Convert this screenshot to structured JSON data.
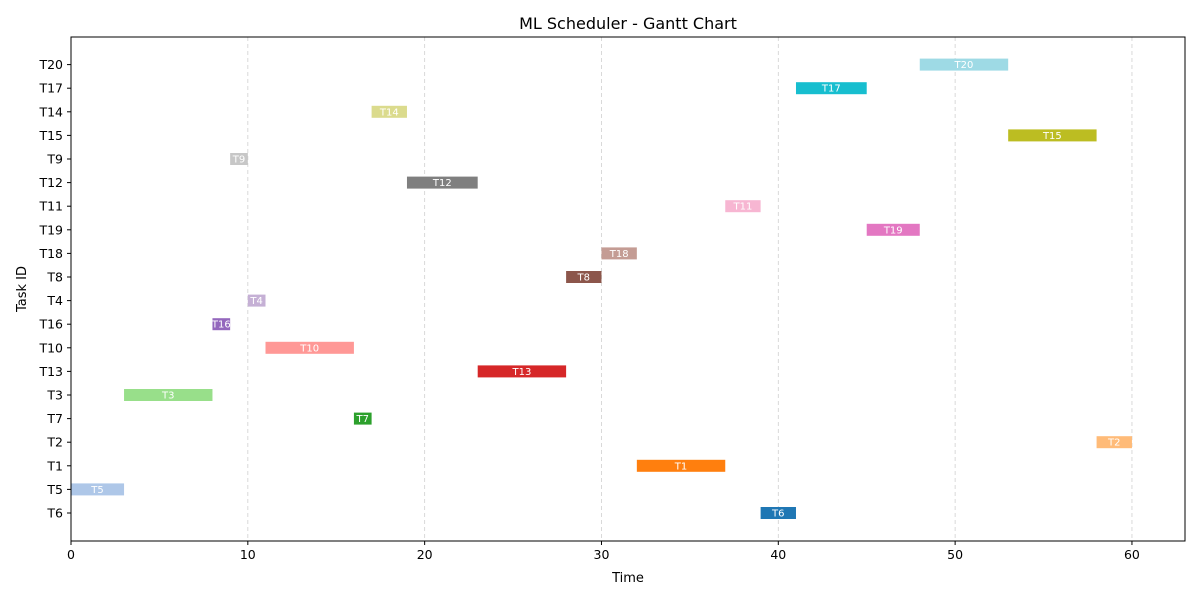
{
  "chart_data": {
    "type": "gantt",
    "title": "ML Scheduler - Gantt Chart",
    "xlabel": "Time",
    "ylabel": "Task ID",
    "xlim": [
      0,
      63
    ],
    "xticks": [
      0,
      10,
      20,
      30,
      40,
      50,
      60
    ],
    "grid": "x-dashed",
    "tasks": [
      {
        "id": "T6",
        "start": 39,
        "end": 41,
        "color": "#1f77b4"
      },
      {
        "id": "T5",
        "start": 0,
        "end": 3,
        "color": "#aec7e8"
      },
      {
        "id": "T1",
        "start": 32,
        "end": 37,
        "color": "#ff7f0e"
      },
      {
        "id": "T2",
        "start": 58,
        "end": 60,
        "color": "#ffbb78"
      },
      {
        "id": "T7",
        "start": 16,
        "end": 17,
        "color": "#2ca02c"
      },
      {
        "id": "T3",
        "start": 3,
        "end": 8,
        "color": "#98df8a"
      },
      {
        "id": "T13",
        "start": 23,
        "end": 28,
        "color": "#d62728"
      },
      {
        "id": "T10",
        "start": 11,
        "end": 16,
        "color": "#ff9896"
      },
      {
        "id": "T16",
        "start": 8,
        "end": 9,
        "color": "#9467bd"
      },
      {
        "id": "T4",
        "start": 10,
        "end": 11,
        "color": "#c5b0d5"
      },
      {
        "id": "T8",
        "start": 28,
        "end": 30,
        "color": "#8c564b"
      },
      {
        "id": "T18",
        "start": 30,
        "end": 32,
        "color": "#c49c94"
      },
      {
        "id": "T19",
        "start": 45,
        "end": 48,
        "color": "#e377c2"
      },
      {
        "id": "T11",
        "start": 37,
        "end": 39,
        "color": "#f7b6d2"
      },
      {
        "id": "T12",
        "start": 19,
        "end": 23,
        "color": "#7f7f7f"
      },
      {
        "id": "T9",
        "start": 9,
        "end": 10,
        "color": "#c7c7c7"
      },
      {
        "id": "T15",
        "start": 53,
        "end": 58,
        "color": "#bcbd22"
      },
      {
        "id": "T14",
        "start": 17,
        "end": 19,
        "color": "#dbdb8d"
      },
      {
        "id": "T17",
        "start": 41,
        "end": 45,
        "color": "#17becf"
      },
      {
        "id": "T20",
        "start": 48,
        "end": 53,
        "color": "#9edae5"
      }
    ]
  }
}
